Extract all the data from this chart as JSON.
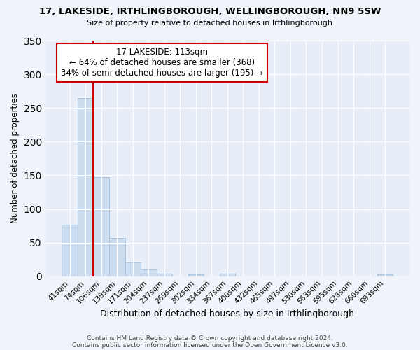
{
  "title": "17, LAKESIDE, IRTHLINGBOROUGH, WELLINGBOROUGH, NN9 5SW",
  "subtitle": "Size of property relative to detached houses in Irthlingborough",
  "xlabel": "Distribution of detached houses by size in Irthlingborough",
  "ylabel": "Number of detached properties",
  "bar_labels": [
    "41sqm",
    "74sqm",
    "106sqm",
    "139sqm",
    "171sqm",
    "204sqm",
    "237sqm",
    "269sqm",
    "302sqm",
    "334sqm",
    "367sqm",
    "400sqm",
    "432sqm",
    "465sqm",
    "497sqm",
    "530sqm",
    "563sqm",
    "595sqm",
    "628sqm",
    "660sqm",
    "693sqm"
  ],
  "bar_values": [
    77,
    265,
    147,
    57,
    20,
    10,
    4,
    0,
    3,
    0,
    4,
    0,
    0,
    0,
    0,
    0,
    0,
    0,
    0,
    0,
    3
  ],
  "bar_color": "#ccddf0",
  "bar_edge_color": "#aac4df",
  "vline_x": 2.0,
  "vline_color": "#cc0000",
  "annotation_title": "17 LAKESIDE: 113sqm",
  "annotation_line1": "← 64% of detached houses are smaller (368)",
  "annotation_line2": "34% of semi-detached houses are larger (195) →",
  "annotation_box_color": "#ffffff",
  "annotation_box_edge": "#cc0000",
  "ylim": [
    0,
    350
  ],
  "yticks": [
    0,
    50,
    100,
    150,
    200,
    250,
    300,
    350
  ],
  "footer1": "Contains HM Land Registry data © Crown copyright and database right 2024.",
  "footer2": "Contains public sector information licensed under the Open Government Licence v3.0.",
  "bg_color": "#f0f4fa",
  "plot_bg_color": "#e8eef8"
}
